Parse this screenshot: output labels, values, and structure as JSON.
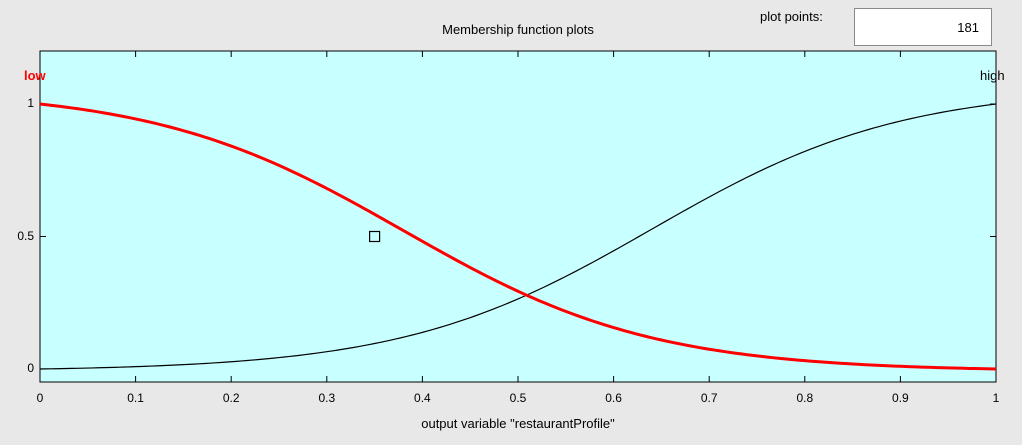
{
  "header": {
    "title": "Membership function plots",
    "plot_points_label": "plot points:",
    "plot_points_value": "181"
  },
  "plot": {
    "background_color": "#c8ffff",
    "xlabel": "output variable \"restaurantProfile\"",
    "x_ticks": [
      "0",
      "0.1",
      "0.2",
      "0.3",
      "0.4",
      "0.5",
      "0.6",
      "0.7",
      "0.8",
      "0.9",
      "1"
    ],
    "y_ticks": [
      "0",
      "0.5",
      "1"
    ],
    "membership_functions": [
      {
        "name": "low",
        "color": "#ff0000",
        "selected": true
      },
      {
        "name": "high",
        "color": "#000000",
        "selected": false
      }
    ],
    "marker": {
      "x": 0.35,
      "y": 0.5
    }
  }
}
